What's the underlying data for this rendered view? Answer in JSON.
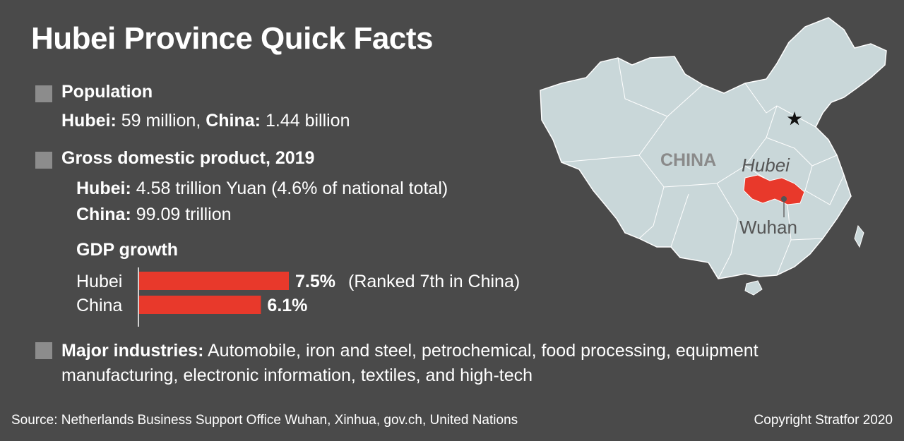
{
  "title": "Hubei Province Quick Facts",
  "population": {
    "heading": "Population",
    "hubei_label": "Hubei:",
    "hubei_value": " 59 million,",
    "china_label": "China:",
    "china_value": " 1.44 billion"
  },
  "gdp": {
    "heading": "Gross domestic product, 2019",
    "hubei_label": "Hubei:",
    "hubei_value": " 4.58 trillion Yuan (4.6% of national total)",
    "china_label": "China:",
    "china_value": " 99.09 trillion"
  },
  "industries": {
    "label": "Major industries:",
    "text": " Automobile, iron and steel, petrochemical, food processing, equipment manufacturing, electronic information, textiles, and high-tech"
  },
  "map": {
    "country_label": "CHINA",
    "province_label": "Hubei",
    "city_label": "Wuhan"
  },
  "footer": {
    "source": "Source: Netherlands Business Support Office Wuhan, Xinhua, gov.ch, United Nations",
    "copyright": "Copyright Stratfor 2020"
  },
  "colors": {
    "background": "#4a4a4a",
    "bar": "#e8392b",
    "map_land": "#c9d7d9",
    "highlight": "#e8392b"
  },
  "chart_data": {
    "type": "bar",
    "orientation": "horizontal",
    "title": "GDP growth",
    "categories": [
      "Hubei",
      "China"
    ],
    "values": [
      7.5,
      6.1
    ],
    "value_labels": [
      "7.5%",
      "6.1%"
    ],
    "annotations": [
      "(Ranked 7th in China)",
      ""
    ],
    "xlim": [
      0,
      7.5
    ],
    "grid": false
  }
}
